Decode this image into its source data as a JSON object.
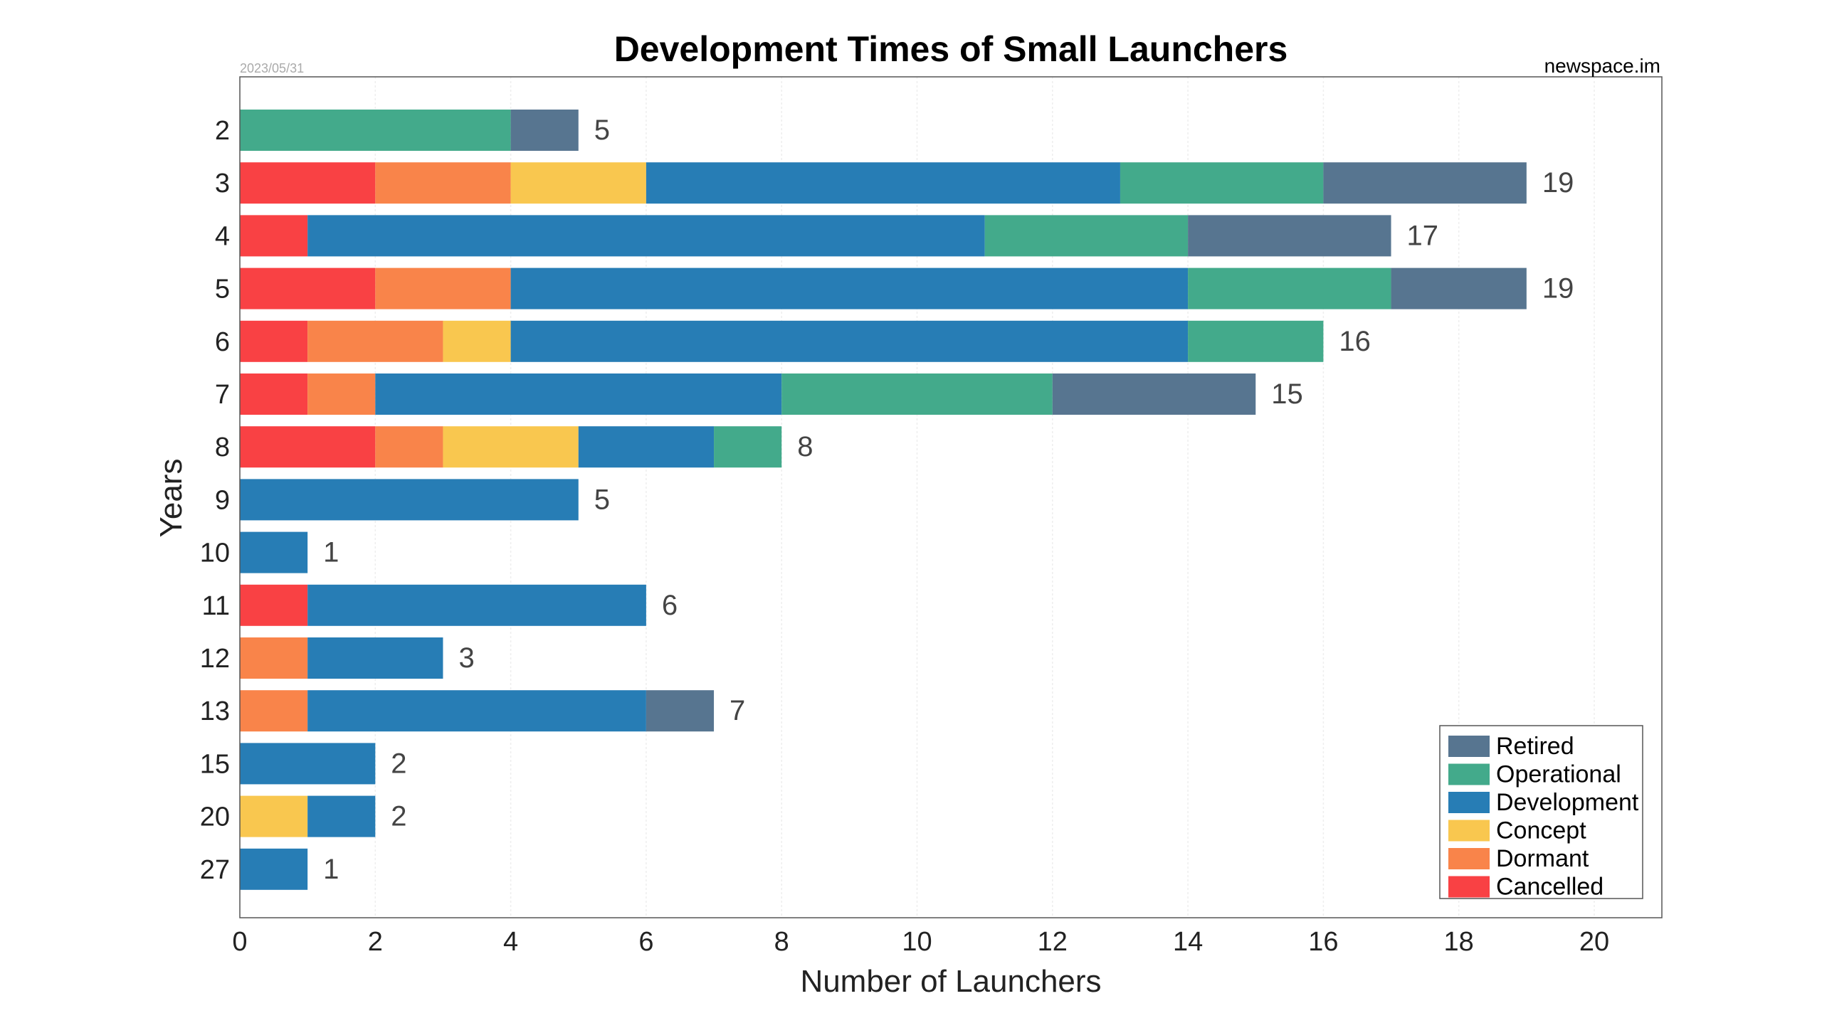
{
  "chart_data": {
    "type": "bar",
    "orientation": "horizontal",
    "stacked": true,
    "title": "Development Times of Small Launchers",
    "date_label": "2023/05/31",
    "source_label": "newspace.im",
    "xlabel": "Number of Launchers",
    "ylabel": "Years",
    "xlim": [
      0,
      21
    ],
    "xticks": [
      0,
      2,
      4,
      6,
      8,
      10,
      12,
      14,
      16,
      18,
      20
    ],
    "grid": true,
    "legend_position": "bottom-right",
    "categories": [
      "2",
      "3",
      "4",
      "5",
      "6",
      "7",
      "8",
      "9",
      "10",
      "11",
      "12",
      "13",
      "15",
      "20",
      "27"
    ],
    "totals": [
      5,
      19,
      17,
      19,
      16,
      15,
      8,
      5,
      1,
      6,
      3,
      7,
      2,
      2,
      1
    ],
    "series": [
      {
        "name": "Cancelled",
        "color": "#F94144",
        "values": [
          0,
          2,
          1,
          2,
          1,
          1,
          2,
          0,
          0,
          1,
          0,
          0,
          0,
          0,
          0
        ]
      },
      {
        "name": "Dormant",
        "color": "#F9844A",
        "values": [
          0,
          2,
          0,
          2,
          2,
          1,
          1,
          0,
          0,
          0,
          1,
          1,
          0,
          0,
          0
        ]
      },
      {
        "name": "Concept",
        "color": "#F9C74F",
        "values": [
          0,
          2,
          0,
          0,
          1,
          0,
          2,
          0,
          0,
          0,
          0,
          0,
          0,
          1,
          0
        ]
      },
      {
        "name": "Development",
        "color": "#277DB5",
        "values": [
          0,
          7,
          10,
          10,
          10,
          6,
          2,
          5,
          1,
          5,
          2,
          5,
          2,
          1,
          1
        ]
      },
      {
        "name": "Operational",
        "color": "#43AA8B",
        "values": [
          4,
          3,
          3,
          3,
          2,
          4,
          1,
          0,
          0,
          0,
          0,
          0,
          0,
          0,
          0
        ]
      },
      {
        "name": "Retired",
        "color": "#577590",
        "values": [
          1,
          3,
          3,
          2,
          0,
          3,
          0,
          0,
          0,
          0,
          0,
          1,
          0,
          0,
          0
        ]
      }
    ],
    "legend_order": [
      "Retired",
      "Operational",
      "Development",
      "Concept",
      "Dormant",
      "Cancelled"
    ]
  }
}
